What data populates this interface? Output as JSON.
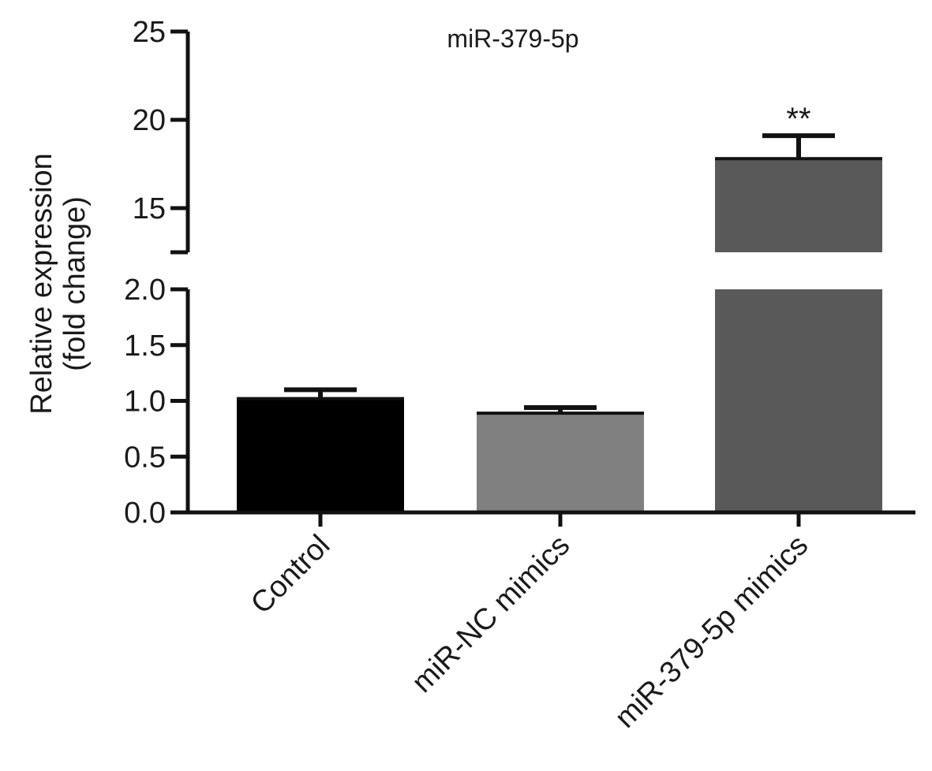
{
  "chart_data": {
    "type": "bar",
    "title": "miR-379-5p",
    "ylabel_lines": [
      "Relative expression",
      "(fold change)"
    ],
    "categories": [
      "Control",
      "miR-NC mimics",
      "miR-379-5p mimics"
    ],
    "values": [
      1.02,
      0.89,
      17.8
    ],
    "errors": [
      0.08,
      0.05,
      1.3
    ],
    "significance": [
      "",
      "",
      "**"
    ],
    "colors": [
      "#000000",
      "#808080",
      "#595959"
    ],
    "y_axis_break": {
      "lower_segment": {
        "ylim": [
          0,
          2.0
        ],
        "ticks": [
          0.0,
          0.5,
          1.0,
          1.5,
          2.0
        ],
        "tick_labels": [
          "0.0",
          "0.5",
          "1.0",
          "1.5",
          "2.0"
        ]
      },
      "upper_segment": {
        "ylim": [
          12.5,
          25
        ],
        "ticks": [
          15,
          20,
          25
        ],
        "tick_labels": [
          "15",
          "20",
          "25"
        ]
      }
    },
    "grid": false,
    "legend": "none"
  }
}
